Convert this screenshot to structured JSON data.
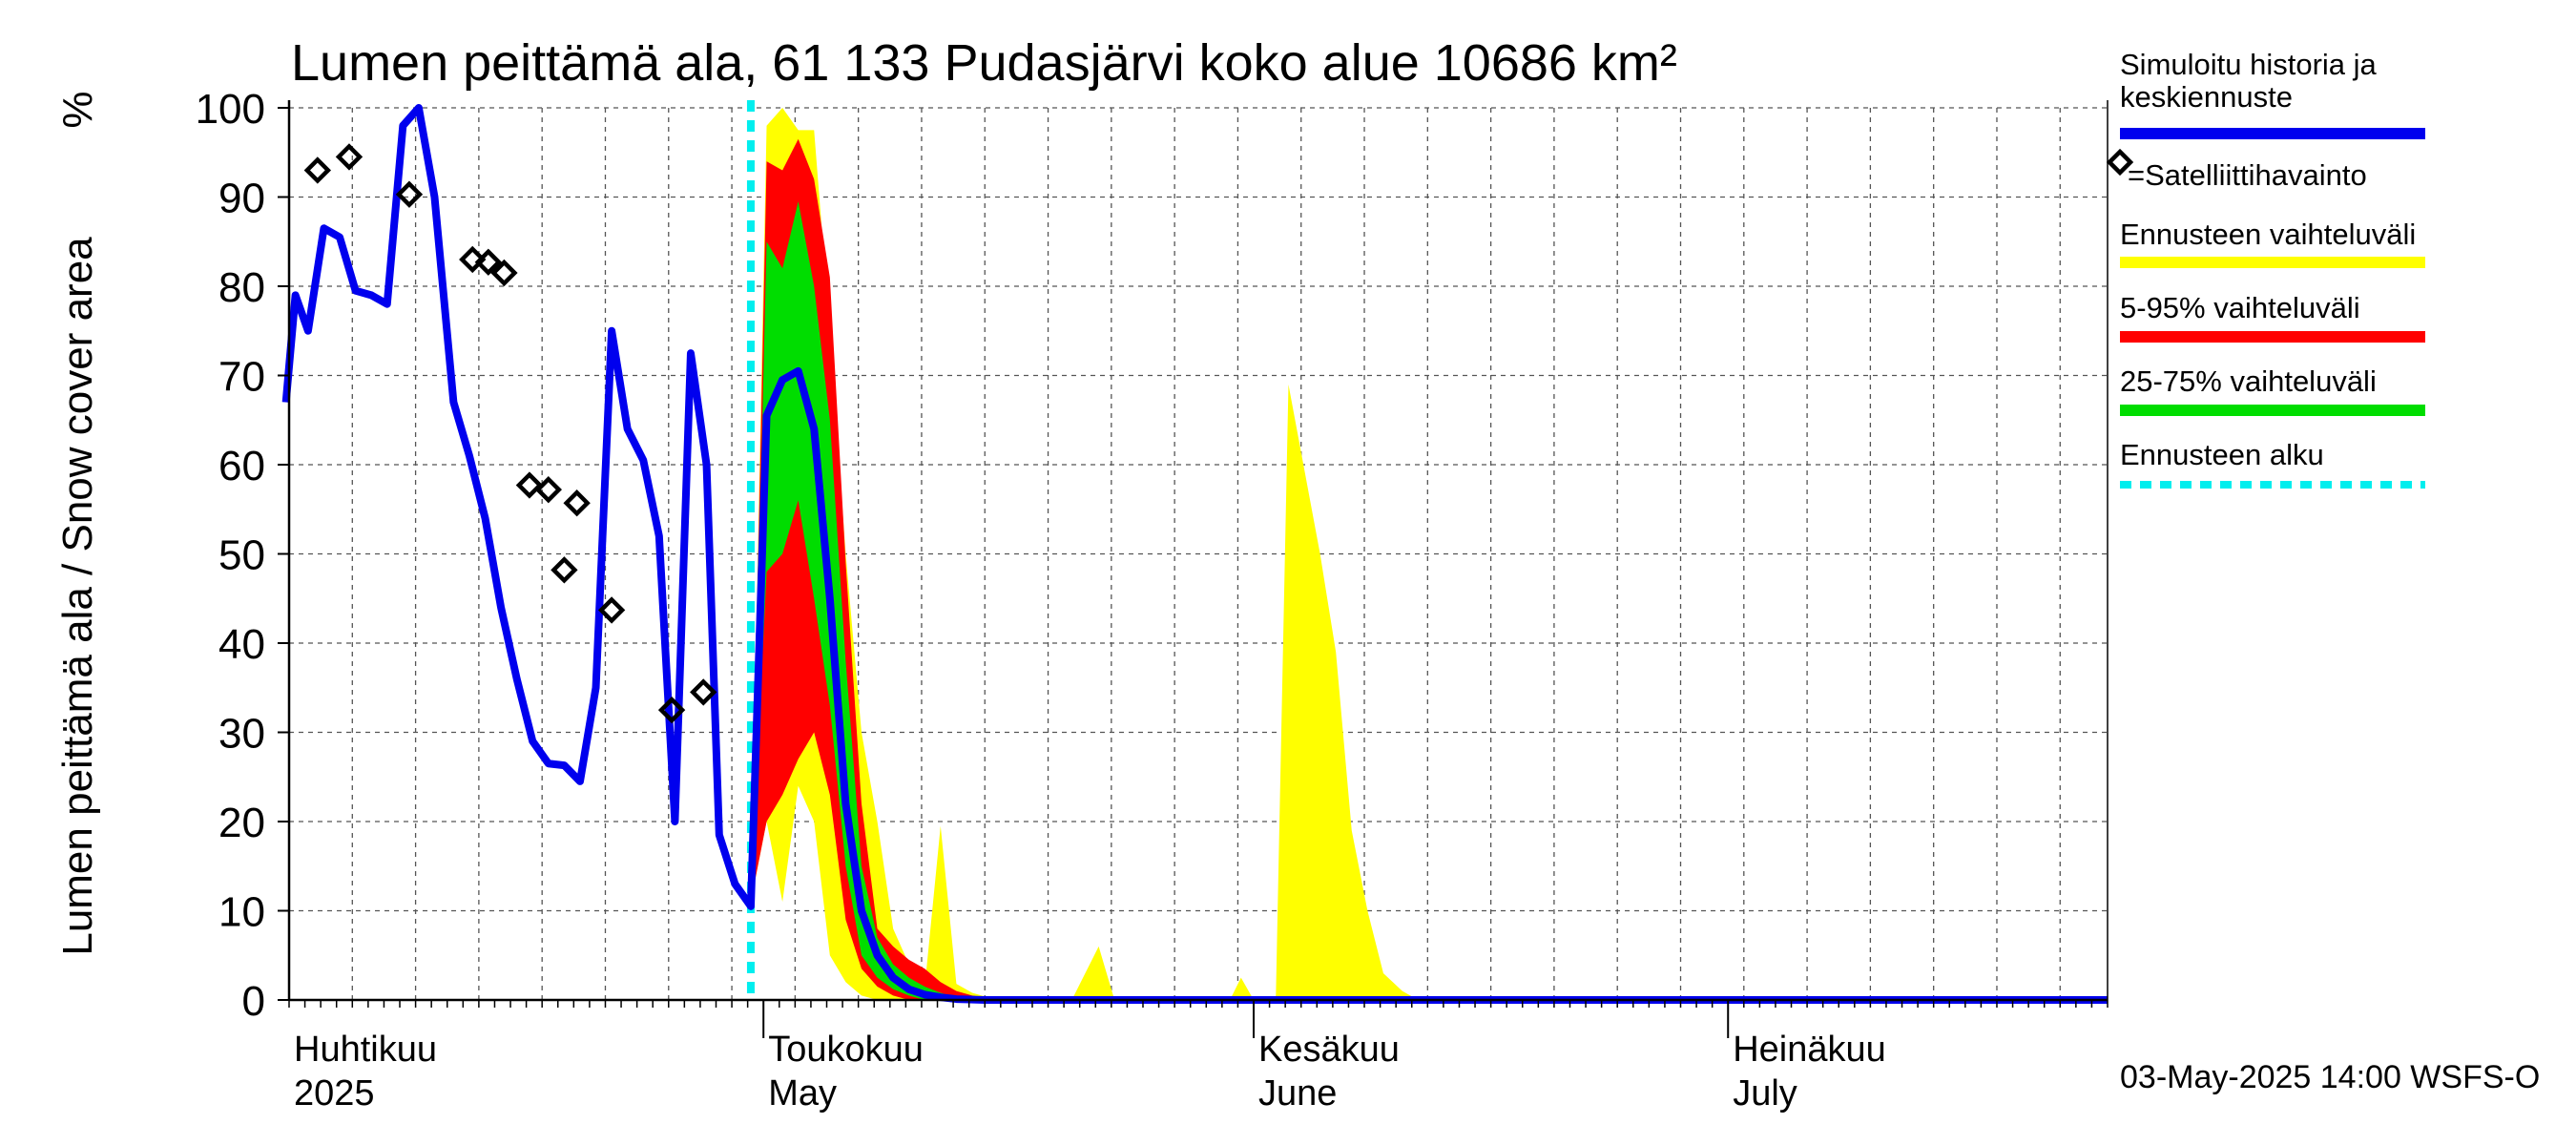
{
  "chart_data": {
    "type": "area",
    "title": "Lumen peittämä ala, 61 133 Pudasjärvi koko alue 10686 km²",
    "ylabel": "Lumen peittämä ala / Snow cover area",
    "yunit": "%",
    "ylim": [
      0,
      100
    ],
    "yticks": [
      0,
      10,
      20,
      30,
      40,
      50,
      60,
      70,
      80,
      90,
      100
    ],
    "xlim_day": [
      0,
      115
    ],
    "grid": true,
    "month_labels": [
      {
        "day": 0,
        "fi": "Huhtikuu",
        "en": "2025"
      },
      {
        "day": 30,
        "fi": "Toukokuu",
        "en": "May"
      },
      {
        "day": 61,
        "fi": "Kesäkuu",
        "en": "June"
      },
      {
        "day": 91,
        "fi": "Heinäkuu",
        "en": "July"
      }
    ],
    "x_note": "day = days since 2025-04-01 (axis from 1 Apr to 25 Jul 2025)",
    "forecast_start_day": 29.2,
    "series": [
      {
        "name": "Simuloitu historia ja keskiennuste",
        "color": "#0000ee",
        "points": [
          [
            -0.2,
            67
          ],
          [
            0.4,
            79
          ],
          [
            1.2,
            75
          ],
          [
            2.2,
            86.5
          ],
          [
            3.2,
            85.5
          ],
          [
            4.2,
            79.5
          ],
          [
            5.2,
            79
          ],
          [
            6.2,
            78
          ],
          [
            7.2,
            98
          ],
          [
            8.2,
            100
          ],
          [
            9.2,
            90
          ],
          [
            10.4,
            67
          ],
          [
            11.4,
            61
          ],
          [
            12.4,
            54
          ],
          [
            13.4,
            44
          ],
          [
            14.4,
            36
          ],
          [
            15.4,
            29
          ],
          [
            16.4,
            26.5
          ],
          [
            17.4,
            26.3
          ],
          [
            18.4,
            24.5
          ],
          [
            19.4,
            35
          ],
          [
            20.4,
            75
          ],
          [
            21.4,
            64
          ],
          [
            22.4,
            60.5
          ],
          [
            23.4,
            52
          ],
          [
            24.4,
            20
          ],
          [
            25.4,
            72.5
          ],
          [
            26.4,
            60
          ],
          [
            27.2,
            18.5
          ],
          [
            28.2,
            13
          ],
          [
            29.2,
            10.5
          ],
          [
            30.2,
            65.5
          ],
          [
            31.2,
            69.5
          ],
          [
            32.2,
            70.5
          ],
          [
            33.2,
            64
          ],
          [
            34.2,
            45
          ],
          [
            35.2,
            22
          ],
          [
            36.2,
            10
          ],
          [
            37.2,
            5
          ],
          [
            38.2,
            2.5
          ],
          [
            39.2,
            1.2
          ],
          [
            40.2,
            0.6
          ],
          [
            41.2,
            0.3
          ],
          [
            42.2,
            0.1
          ],
          [
            44,
            0
          ],
          [
            115,
            0
          ]
        ]
      }
    ],
    "observations": {
      "name": "=Satelliittihavainto",
      "points": [
        [
          1.8,
          93
        ],
        [
          3.8,
          94.5
        ],
        [
          7.6,
          90.3
        ],
        [
          11.6,
          83
        ],
        [
          12.6,
          82.7
        ],
        [
          13.6,
          81.5
        ],
        [
          15.2,
          57.7
        ],
        [
          16.4,
          57.2
        ],
        [
          18.2,
          55.7
        ],
        [
          17.4,
          48.2
        ],
        [
          20.4,
          43.7
        ],
        [
          24.2,
          32.5
        ],
        [
          26.2,
          34.5
        ]
      ]
    },
    "bands": [
      {
        "name": "Ennusteen vaihteluväli",
        "color": "#ffff00",
        "upper": [
          [
            29.2,
            11
          ],
          [
            30.2,
            98
          ],
          [
            31.2,
            100
          ],
          [
            32.2,
            97.5
          ],
          [
            33.2,
            97.5
          ],
          [
            34.2,
            75
          ],
          [
            35.2,
            50
          ],
          [
            36.2,
            30
          ],
          [
            37.2,
            20
          ],
          [
            38.2,
            8
          ],
          [
            39.2,
            4
          ],
          [
            40.2,
            1.5
          ],
          [
            41.2,
            19.5
          ],
          [
            42.2,
            1.8
          ],
          [
            43.2,
            0.8
          ],
          [
            44.2,
            0.3
          ],
          [
            45,
            0
          ],
          [
            49.5,
            0
          ],
          [
            51.2,
            6
          ],
          [
            52.2,
            0
          ],
          [
            59.5,
            0
          ],
          [
            60.2,
            2.5
          ],
          [
            61,
            0
          ],
          [
            62.4,
            0
          ],
          [
            63.2,
            69
          ],
          [
            65.2,
            50
          ],
          [
            66.2,
            39
          ],
          [
            67.2,
            19
          ],
          [
            68.2,
            10
          ],
          [
            69.2,
            3
          ],
          [
            70.4,
            1
          ],
          [
            71.4,
            0
          ],
          [
            115,
            0
          ]
        ],
        "lower": [
          [
            29.2,
            11
          ],
          [
            30.2,
            20
          ],
          [
            31.2,
            11
          ],
          [
            32.2,
            24
          ],
          [
            33.2,
            20
          ],
          [
            34.2,
            5
          ],
          [
            35.2,
            2
          ],
          [
            36.2,
            0.5
          ],
          [
            37.2,
            0
          ],
          [
            115,
            0
          ]
        ]
      },
      {
        "name": "5-95% vaihteluväli",
        "color": "#ff0000",
        "upper": [
          [
            29.2,
            11
          ],
          [
            30.2,
            94
          ],
          [
            31.2,
            93
          ],
          [
            32.2,
            96.5
          ],
          [
            33.2,
            92
          ],
          [
            34.2,
            81
          ],
          [
            35.2,
            49
          ],
          [
            36.2,
            22
          ],
          [
            37.2,
            8
          ],
          [
            38.2,
            6
          ],
          [
            39.2,
            4.5
          ],
          [
            40.2,
            3.5
          ],
          [
            41.2,
            2
          ],
          [
            42.2,
            1
          ],
          [
            43.2,
            0.5
          ],
          [
            44.2,
            0.2
          ],
          [
            45.2,
            0
          ],
          [
            115,
            0
          ]
        ],
        "lower": [
          [
            29.2,
            11
          ],
          [
            30.2,
            20
          ],
          [
            31.2,
            23
          ],
          [
            32.2,
            27
          ],
          [
            33.2,
            30
          ],
          [
            34.2,
            23
          ],
          [
            35.2,
            9
          ],
          [
            36.2,
            3.5
          ],
          [
            37.2,
            1.5
          ],
          [
            38.2,
            0.5
          ],
          [
            39.2,
            0
          ],
          [
            115,
            0
          ]
        ]
      },
      {
        "name": "25-75% vaihteluväli",
        "color": "#00dd00",
        "upper": [
          [
            29.2,
            11
          ],
          [
            30.2,
            85
          ],
          [
            31.2,
            82
          ],
          [
            32.2,
            89.5
          ],
          [
            33.2,
            80
          ],
          [
            34.2,
            65
          ],
          [
            35.2,
            38
          ],
          [
            36.2,
            15
          ],
          [
            37.2,
            7
          ],
          [
            38.2,
            4
          ],
          [
            39.2,
            2.5
          ],
          [
            40.2,
            1.5
          ],
          [
            41.2,
            0.8
          ],
          [
            42.2,
            0.3
          ],
          [
            43.2,
            0
          ],
          [
            115,
            0
          ]
        ],
        "lower": [
          [
            29.2,
            11
          ],
          [
            30.2,
            48
          ],
          [
            31.2,
            50
          ],
          [
            32.2,
            56
          ],
          [
            33.2,
            45
          ],
          [
            34.2,
            33
          ],
          [
            35.2,
            15
          ],
          [
            36.2,
            5
          ],
          [
            37.2,
            2.5
          ],
          [
            38.2,
            1.2
          ],
          [
            39.2,
            0.5
          ],
          [
            40.2,
            0
          ],
          [
            115,
            0
          ]
        ]
      }
    ],
    "legend": [
      {
        "label_lines": [
          "Simuloitu historia ja",
          "keskiennuste"
        ],
        "color": "#0000ee",
        "style": "line"
      },
      {
        "label_lines": [
          "=Satelliittihavainto"
        ],
        "color": "#000000",
        "style": "diamond"
      },
      {
        "label_lines": [
          "Ennusteen vaihteluväli"
        ],
        "color": "#ffff00",
        "style": "line"
      },
      {
        "label_lines": [
          "5-95% vaihteluväli"
        ],
        "color": "#ff0000",
        "style": "line"
      },
      {
        "label_lines": [
          "25-75% vaihteluväli"
        ],
        "color": "#00dd00",
        "style": "line"
      },
      {
        "label_lines": [
          "Ennusteen alku"
        ],
        "color": "#00eeee",
        "style": "dashed"
      }
    ],
    "footer": "03-May-2025 14:00 WSFS-O"
  }
}
